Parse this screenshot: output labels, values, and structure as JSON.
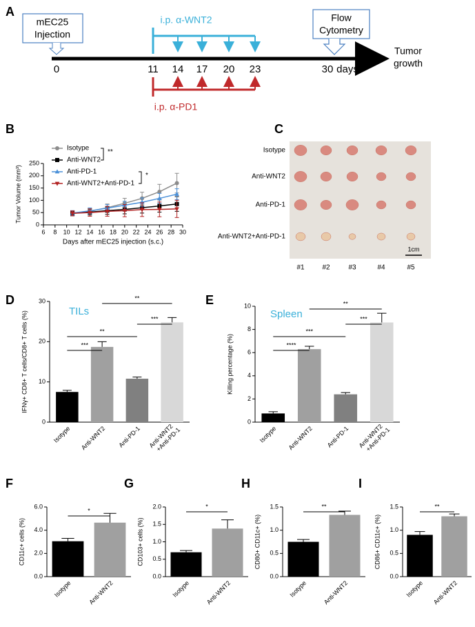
{
  "panel_labels": [
    "A",
    "B",
    "C",
    "D",
    "E",
    "F",
    "G",
    "H",
    "I"
  ],
  "timeline": {
    "injection": [
      "mEC25",
      "Injection"
    ],
    "wnt2": "i.p. α-WNT2",
    "pd1": "i.p. α-PD1",
    "flow": [
      "Flow",
      "Cytometry"
    ],
    "outcome": [
      "Tumor",
      "growth"
    ],
    "days": [
      0,
      11,
      14,
      17,
      20,
      23,
      30
    ],
    "unit": "days"
  },
  "photo": {
    "rows": [
      "Isotype",
      "Anti-WNT2",
      "Anti-PD-1",
      "Anti-WNT2+Anti-PD-1"
    ],
    "columns": [
      "#1",
      "#2",
      "#3",
      "#4",
      "#5"
    ],
    "scale": "1cm"
  },
  "chart_data": [
    {
      "type": "line",
      "xlabel": "Days after mEC25 injection (s.c.)",
      "ylabel": "Tumor Volume (mm³)",
      "x": [
        11,
        14,
        17,
        20,
        23,
        26,
        29
      ],
      "xlim": [
        6,
        30
      ],
      "xticks": [
        6,
        8,
        10,
        12,
        14,
        16,
        18,
        20,
        22,
        24,
        26,
        28,
        30
      ],
      "ylim": [
        0,
        250
      ],
      "yticks": [
        0,
        50,
        100,
        150,
        200,
        250
      ],
      "legend": "upper left",
      "annotations": [
        "**",
        "*"
      ],
      "series": [
        {
          "name": "Isotype",
          "color": "#8c8c8c",
          "marker": "circle",
          "values": [
            48,
            55,
            70,
            88,
            108,
            135,
            170
          ],
          "errors": [
            10,
            12,
            15,
            20,
            25,
            30,
            40
          ]
        },
        {
          "name": "Anti-WNT2",
          "color": "#000000",
          "marker": "square",
          "values": [
            47,
            52,
            58,
            63,
            70,
            77,
            85
          ],
          "errors": [
            10,
            12,
            15,
            18,
            22,
            25,
            30
          ]
        },
        {
          "name": "Anti-PD-1",
          "color": "#4a90d9",
          "marker": "triangle",
          "values": [
            48,
            57,
            68,
            80,
            92,
            108,
            125
          ],
          "errors": [
            10,
            12,
            14,
            16,
            18,
            20,
            22
          ]
        },
        {
          "name": "Anti-WNT2+Anti-PD-1",
          "color": "#b22222",
          "marker": "triangle-down",
          "values": [
            47,
            50,
            55,
            58,
            62,
            63,
            65
          ],
          "errors": [
            10,
            15,
            20,
            25,
            28,
            30,
            35
          ]
        }
      ]
    },
    {
      "type": "bar",
      "title": "TILs",
      "ylabel": "IFNγ+ CD8+ T cells/CD8+ T cells (%)",
      "categories": [
        "Isotype",
        "Anti-WNT2",
        "Anti-PD-1",
        "Anti-WNT2+Anti-PD-1"
      ],
      "values": [
        7.5,
        18.7,
        10.8,
        24.8
      ],
      "errors": [
        0.4,
        1.3,
        0.4,
        1.2
      ],
      "colors": [
        "#000000",
        "#a0a0a0",
        "#808080",
        "#d8d8d8"
      ],
      "ylim": [
        0,
        30
      ],
      "yticks": [
        0,
        10,
        20,
        30
      ],
      "significance": [
        {
          "between": [
            0,
            1
          ],
          "label": "***"
        },
        {
          "between": [
            0,
            2
          ],
          "label": "**"
        },
        {
          "between": [
            1,
            3
          ],
          "label": "**"
        },
        {
          "between": [
            2,
            3
          ],
          "label": "***"
        }
      ]
    },
    {
      "type": "bar",
      "title": "Spleen",
      "ylabel": "Killing percentage (%)",
      "categories": [
        "Isotype",
        "Anti-WNT2",
        "Anti-PD-1",
        "Anti-WNT2+Anti-PD-1"
      ],
      "values": [
        0.75,
        6.3,
        2.4,
        8.6
      ],
      "errors": [
        0.15,
        0.25,
        0.15,
        0.8
      ],
      "colors": [
        "#000000",
        "#a0a0a0",
        "#808080",
        "#d8d8d8"
      ],
      "ylim": [
        0,
        10
      ],
      "yticks": [
        0,
        2,
        4,
        6,
        8,
        10
      ],
      "significance": [
        {
          "between": [
            0,
            1
          ],
          "label": "****"
        },
        {
          "between": [
            0,
            2
          ],
          "label": "***"
        },
        {
          "between": [
            1,
            3
          ],
          "label": "**"
        },
        {
          "between": [
            2,
            3
          ],
          "label": "***"
        }
      ]
    },
    {
      "type": "bar",
      "ylabel": "CD11c+ cells (%)",
      "categories": [
        "Isotype",
        "Anti-WNT2"
      ],
      "values": [
        3.05,
        4.65
      ],
      "errors": [
        0.25,
        0.8
      ],
      "colors": [
        "#000000",
        "#a0a0a0"
      ],
      "ylim": [
        0,
        6
      ],
      "yticks": [
        {
          "value": 0,
          "label": "0.0"
        },
        {
          "value": 2,
          "label": "2.0"
        },
        {
          "value": 4,
          "label": "4.0"
        },
        {
          "value": 6,
          "label": "6.0"
        }
      ],
      "significance": [
        {
          "between": [
            0,
            1
          ],
          "label": "*"
        }
      ]
    },
    {
      "type": "bar",
      "ylabel": "CD103+ cells (%)",
      "categories": [
        "Isotype",
        "Anti-WNT2"
      ],
      "values": [
        0.7,
        1.38
      ],
      "errors": [
        0.05,
        0.25
      ],
      "colors": [
        "#000000",
        "#a0a0a0"
      ],
      "ylim": [
        0,
        2
      ],
      "yticks": [
        {
          "value": 0,
          "label": "0.0"
        },
        0.5,
        {
          "value": 1,
          "label": "1.0"
        },
        1.5,
        {
          "value": 2,
          "label": "2.0"
        }
      ],
      "significance": [
        {
          "between": [
            0,
            1
          ],
          "label": "*"
        }
      ]
    },
    {
      "type": "bar",
      "ylabel": "CD80+ CD11c+ (%)",
      "categories": [
        "Isotype",
        "Anti-WNT2"
      ],
      "values": [
        0.75,
        1.33
      ],
      "errors": [
        0.05,
        0.08
      ],
      "colors": [
        "#000000",
        "#a0a0a0"
      ],
      "ylim": [
        0,
        1.5
      ],
      "yticks": [
        {
          "value": 0,
          "label": "0.0"
        },
        0.5,
        {
          "value": 1,
          "label": "1.0"
        },
        1.5
      ],
      "significance": [
        {
          "between": [
            0,
            1
          ],
          "label": "**"
        }
      ]
    },
    {
      "type": "bar",
      "ylabel": "CD86+ CD11c+ (%)",
      "categories": [
        "Isotype",
        "Anti-WNT2"
      ],
      "values": [
        0.9,
        1.3
      ],
      "errors": [
        0.07,
        0.05
      ],
      "colors": [
        "#000000",
        "#a0a0a0"
      ],
      "ylim": [
        0,
        1.5
      ],
      "yticks": [
        {
          "value": 0,
          "label": "0.0"
        },
        0.5,
        {
          "value": 1,
          "label": "1.0"
        },
        1.5
      ],
      "significance": [
        {
          "between": [
            0,
            1
          ],
          "label": "**"
        }
      ]
    }
  ]
}
